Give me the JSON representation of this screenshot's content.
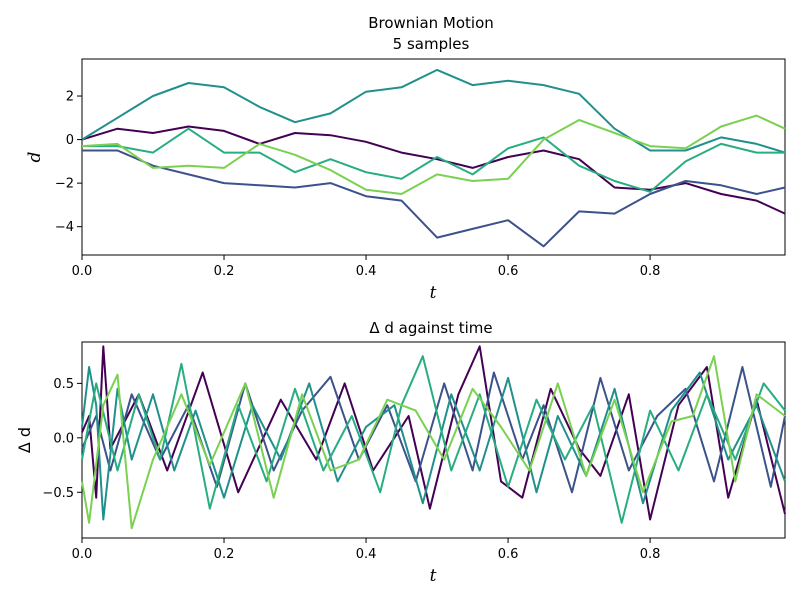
{
  "chart_data": [
    {
      "type": "line",
      "title": "Brownian Motion",
      "subtitle": "5 samples",
      "xlabel": "t",
      "ylabel": "d",
      "xlim": [
        0,
        0.99
      ],
      "ylim": [
        -5.3,
        3.7
      ],
      "xticks": [
        0.0,
        0.2,
        0.4,
        0.6,
        0.8
      ],
      "xtick_labels": [
        "0.0",
        "0.2",
        "0.4",
        "0.6",
        "0.8"
      ],
      "yticks": [
        2,
        0,
        -2,
        -4
      ],
      "ytick_labels": [
        "2",
        "0",
        "−2",
        "−4"
      ],
      "grid": false,
      "series": [
        {
          "color": "#440154",
          "x": [
            0.0,
            0.05,
            0.1,
            0.15,
            0.2,
            0.25,
            0.3,
            0.35,
            0.4,
            0.45,
            0.5,
            0.55,
            0.6,
            0.65,
            0.7,
            0.75,
            0.8,
            0.85,
            0.9,
            0.95,
            0.99
          ],
          "y": [
            0.0,
            0.5,
            0.3,
            0.6,
            0.4,
            -0.2,
            0.3,
            0.2,
            -0.1,
            -0.6,
            -0.9,
            -1.3,
            -0.8,
            -0.5,
            -0.9,
            -2.2,
            -2.3,
            -2.0,
            -2.5,
            -2.8,
            -3.4
          ]
        },
        {
          "color": "#3b528b",
          "x": [
            0.0,
            0.05,
            0.1,
            0.15,
            0.2,
            0.25,
            0.3,
            0.35,
            0.4,
            0.45,
            0.5,
            0.55,
            0.6,
            0.65,
            0.7,
            0.75,
            0.8,
            0.85,
            0.9,
            0.95,
            0.99
          ],
          "y": [
            -0.5,
            -0.5,
            -1.2,
            -1.6,
            -2.0,
            -2.1,
            -2.2,
            -2.0,
            -2.6,
            -2.8,
            -4.5,
            -4.1,
            -3.7,
            -4.9,
            -3.3,
            -3.4,
            -2.5,
            -1.9,
            -2.1,
            -2.5,
            -2.2
          ]
        },
        {
          "color": "#21908d",
          "x": [
            0.0,
            0.05,
            0.1,
            0.15,
            0.2,
            0.25,
            0.3,
            0.35,
            0.4,
            0.45,
            0.5,
            0.55,
            0.6,
            0.65,
            0.7,
            0.75,
            0.8,
            0.85,
            0.9,
            0.95,
            0.99
          ],
          "y": [
            0.0,
            1.0,
            2.0,
            2.6,
            2.4,
            1.5,
            0.8,
            1.2,
            2.2,
            2.4,
            3.2,
            2.5,
            2.7,
            2.5,
            2.1,
            0.5,
            -0.5,
            -0.5,
            0.1,
            -0.2,
            -0.6
          ]
        },
        {
          "color": "#27ad81",
          "x": [
            0.0,
            0.05,
            0.1,
            0.15,
            0.2,
            0.25,
            0.3,
            0.35,
            0.4,
            0.45,
            0.5,
            0.55,
            0.6,
            0.65,
            0.7,
            0.75,
            0.8,
            0.85,
            0.9,
            0.95,
            0.99
          ],
          "y": [
            -0.3,
            -0.3,
            -0.6,
            0.5,
            -0.6,
            -0.6,
            -1.5,
            -0.9,
            -1.5,
            -1.8,
            -0.8,
            -1.6,
            -0.4,
            0.1,
            -1.2,
            -1.9,
            -2.4,
            -1.0,
            -0.2,
            -0.6,
            -0.6
          ]
        },
        {
          "color": "#7ad151",
          "x": [
            0.0,
            0.05,
            0.1,
            0.15,
            0.2,
            0.25,
            0.3,
            0.35,
            0.4,
            0.45,
            0.5,
            0.55,
            0.6,
            0.65,
            0.7,
            0.75,
            0.8,
            0.85,
            0.9,
            0.95,
            0.99
          ],
          "y": [
            -0.3,
            -0.2,
            -1.3,
            -1.2,
            -1.3,
            -0.2,
            -0.7,
            -1.4,
            -2.3,
            -2.5,
            -1.6,
            -1.9,
            -1.8,
            0.0,
            0.9,
            0.3,
            -0.3,
            -0.4,
            0.6,
            1.1,
            0.5
          ]
        }
      ]
    },
    {
      "type": "line",
      "title": "Δ d against time",
      "xlabel": "t",
      "ylabel": "Δ d",
      "xlim": [
        0,
        0.99
      ],
      "ylim": [
        -0.92,
        0.88
      ],
      "xticks": [
        0.0,
        0.2,
        0.4,
        0.6,
        0.8
      ],
      "xtick_labels": [
        "0.0",
        "0.2",
        "0.4",
        "0.6",
        "0.8"
      ],
      "yticks": [
        0.5,
        0.0,
        -0.5
      ],
      "ytick_labels": [
        "0.5",
        "0.0",
        "−0.5"
      ],
      "grid": false,
      "series": [
        {
          "color": "#440154",
          "x": [
            0.0,
            0.01,
            0.02,
            0.03,
            0.04,
            0.08,
            0.12,
            0.17,
            0.22,
            0.28,
            0.33,
            0.37,
            0.41,
            0.46,
            0.49,
            0.53,
            0.56,
            0.59,
            0.62,
            0.66,
            0.7,
            0.73,
            0.77,
            0.8,
            0.84,
            0.88,
            0.91,
            0.95,
            0.99
          ],
          "y": [
            0.05,
            0.2,
            -0.55,
            0.84,
            -0.1,
            0.4,
            -0.3,
            0.6,
            -0.5,
            0.35,
            -0.2,
            0.5,
            -0.3,
            0.2,
            -0.65,
            0.4,
            0.84,
            -0.4,
            -0.55,
            0.45,
            -0.1,
            -0.35,
            0.4,
            -0.75,
            0.3,
            0.65,
            -0.55,
            0.35,
            -0.7
          ]
        },
        {
          "color": "#3b528b",
          "x": [
            0.0,
            0.02,
            0.04,
            0.07,
            0.11,
            0.15,
            0.19,
            0.23,
            0.27,
            0.31,
            0.35,
            0.39,
            0.43,
            0.47,
            0.51,
            0.55,
            0.58,
            0.62,
            0.65,
            0.69,
            0.73,
            0.77,
            0.81,
            0.85,
            0.89,
            0.93,
            0.97,
            0.99
          ],
          "y": [
            -0.1,
            0.2,
            -0.3,
            0.4,
            -0.2,
            0.3,
            -0.45,
            0.5,
            -0.3,
            0.25,
            0.56,
            -0.2,
            0.3,
            -0.4,
            0.5,
            -0.3,
            0.6,
            -0.2,
            0.3,
            -0.5,
            0.55,
            -0.3,
            0.2,
            0.45,
            -0.4,
            0.65,
            -0.45,
            0.2
          ]
        },
        {
          "color": "#21908d",
          "x": [
            0.0,
            0.01,
            0.02,
            0.03,
            0.05,
            0.07,
            0.1,
            0.13,
            0.16,
            0.2,
            0.24,
            0.28,
            0.32,
            0.36,
            0.4,
            0.44,
            0.48,
            0.52,
            0.56,
            0.6,
            0.64,
            0.67,
            0.71,
            0.75,
            0.79,
            0.83,
            0.87,
            0.91,
            0.95,
            0.99
          ],
          "y": [
            0.1,
            0.65,
            0.3,
            -0.75,
            0.45,
            -0.2,
            0.4,
            -0.3,
            0.25,
            -0.55,
            0.3,
            -0.2,
            0.5,
            -0.4,
            0.1,
            0.3,
            -0.6,
            0.4,
            -0.3,
            0.55,
            -0.5,
            0.2,
            -0.35,
            0.45,
            -0.6,
            0.25,
            0.6,
            -0.2,
            0.3,
            -0.4
          ]
        },
        {
          "color": "#27ad81",
          "x": [
            0.0,
            0.02,
            0.05,
            0.08,
            0.11,
            0.14,
            0.18,
            0.22,
            0.26,
            0.3,
            0.34,
            0.38,
            0.42,
            0.45,
            0.48,
            0.52,
            0.56,
            0.6,
            0.64,
            0.68,
            0.72,
            0.76,
            0.8,
            0.84,
            0.88,
            0.92,
            0.96,
            0.99
          ],
          "y": [
            -0.2,
            0.5,
            -0.3,
            0.4,
            -0.2,
            0.68,
            -0.65,
            0.3,
            -0.4,
            0.45,
            -0.3,
            0.2,
            -0.5,
            0.3,
            0.75,
            -0.3,
            0.4,
            -0.45,
            0.35,
            -0.2,
            0.3,
            -0.78,
            0.25,
            -0.3,
            0.4,
            -0.2,
            0.5,
            0.25
          ]
        },
        {
          "color": "#7ad151",
          "x": [
            0.0,
            0.01,
            0.03,
            0.05,
            0.07,
            0.1,
            0.14,
            0.18,
            0.23,
            0.27,
            0.31,
            0.35,
            0.39,
            0.43,
            0.47,
            0.51,
            0.55,
            0.59,
            0.63,
            0.67,
            0.71,
            0.75,
            0.79,
            0.83,
            0.86,
            0.89,
            0.92,
            0.95,
            0.99
          ],
          "y": [
            -0.4,
            -0.78,
            0.3,
            0.58,
            -0.83,
            -0.2,
            0.4,
            -0.25,
            0.5,
            -0.55,
            0.4,
            -0.3,
            -0.2,
            0.35,
            0.25,
            -0.2,
            0.45,
            0.1,
            -0.3,
            0.5,
            -0.35,
            0.35,
            -0.5,
            0.15,
            0.2,
            0.75,
            -0.4,
            0.4,
            0.2
          ]
        }
      ]
    }
  ]
}
